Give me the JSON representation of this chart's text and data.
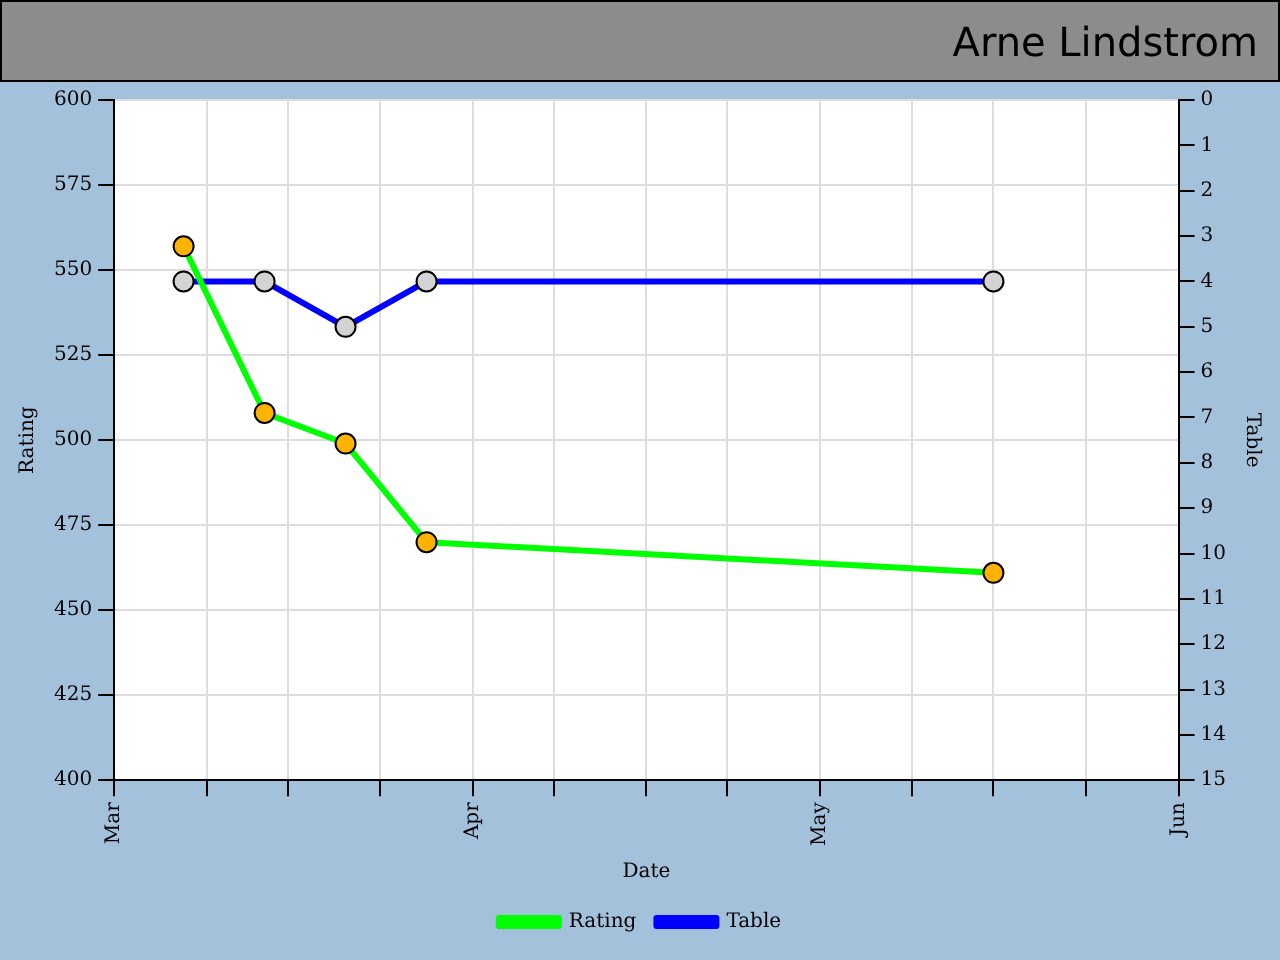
{
  "chart_data": {
    "type": "line",
    "title": "Arne Lindstrom",
    "xlabel": "Date",
    "ylabel": "Rating",
    "y2label": "Table",
    "x": [
      "--03-07",
      "--03-14",
      "--03-21",
      "--03-28",
      "--05-16"
    ],
    "xlim": [
      "--03-01",
      "--06-01"
    ],
    "xticks": [
      {
        "value": "--03-01",
        "label": "Mar"
      },
      {
        "value": "--03-09",
        "label": null
      },
      {
        "value": "--03-16",
        "label": null
      },
      {
        "value": "--03-24",
        "label": null
      },
      {
        "value": "--04-01",
        "label": "Apr"
      },
      {
        "value": "--04-08",
        "label": null
      },
      {
        "value": "--04-16",
        "label": null
      },
      {
        "value": "--04-23",
        "label": null
      },
      {
        "value": "--05-01",
        "label": "May"
      },
      {
        "value": "--05-09",
        "label": null
      },
      {
        "value": "--05-16",
        "label": null
      },
      {
        "value": "--05-24",
        "label": null
      },
      {
        "value": "--06-01",
        "label": "Jun"
      }
    ],
    "ylim": [
      400,
      600
    ],
    "yticks": [
      400,
      425,
      450,
      475,
      500,
      525,
      550,
      575,
      600
    ],
    "y2lim": [
      15,
      0
    ],
    "y2ticks": [
      0,
      1,
      2,
      3,
      4,
      5,
      6,
      7,
      8,
      9,
      10,
      11,
      12,
      13,
      14,
      15
    ],
    "series": [
      {
        "name": "Rating",
        "color": "#00ff00",
        "colors": [
          "#ffb300",
          "#ffb300",
          "#ffb300",
          "#ffb300",
          "#ffb300"
        ],
        "values": [
          557,
          508,
          499,
          470,
          461
        ]
      },
      {
        "name": "Table",
        "color": "#0000ff",
        "colors": [
          "#d3d3d3",
          "#d3d3d3",
          "#d3d3d3",
          "#d3d3d3",
          "#d3d3d3"
        ],
        "axis": "y2",
        "values": [
          4,
          4,
          5,
          4,
          4
        ]
      }
    ],
    "grid": true,
    "legend": "bottom",
    "marker": "circle",
    "line_style": "solid"
  }
}
